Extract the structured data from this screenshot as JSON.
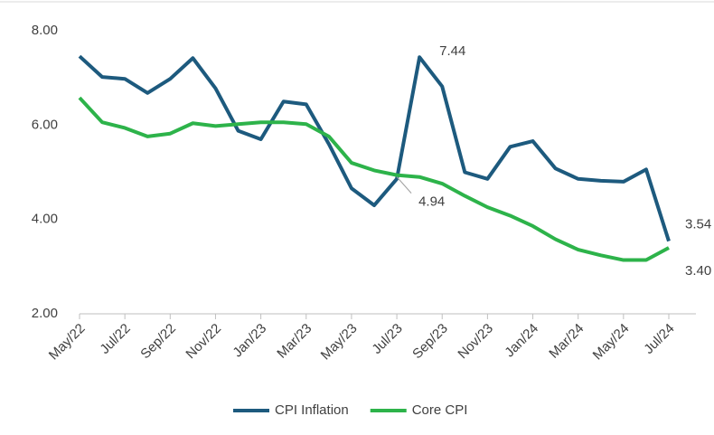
{
  "chart_data": {
    "type": "line",
    "categories": [
      "May/22",
      null,
      "Jul/22",
      null,
      "Sep/22",
      null,
      "Nov/22",
      null,
      "Jan/23",
      null,
      "Mar/23",
      null,
      "May/23",
      null,
      "Jul/23",
      null,
      "Sep/23",
      null,
      "Nov/23",
      null,
      "Jan/24",
      null,
      "Mar/24",
      null,
      "May/24",
      null,
      "Jul/24"
    ],
    "series": [
      {
        "name": "CPI Inflation",
        "color": "#1d5a7e",
        "values": [
          7.46,
          7.02,
          6.98,
          6.68,
          6.98,
          7.42,
          6.78,
          5.88,
          5.7,
          6.5,
          6.44,
          5.6,
          4.66,
          4.3,
          4.86,
          7.44,
          6.82,
          5.0,
          4.86,
          5.54,
          5.66,
          5.08,
          4.86,
          4.82,
          4.8,
          5.06,
          3.54
        ],
        "value_labels": [
          null,
          null,
          null,
          null,
          null,
          null,
          null,
          null,
          null,
          null,
          null,
          null,
          null,
          null,
          null,
          "7.44",
          null,
          null,
          null,
          null,
          null,
          null,
          null,
          null,
          null,
          null,
          "3.54"
        ]
      },
      {
        "name": "Core CPI",
        "color": "#2db34a",
        "values": [
          6.58,
          6.06,
          5.94,
          5.76,
          5.82,
          6.04,
          5.98,
          6.02,
          6.06,
          6.06,
          6.02,
          5.76,
          5.2,
          5.04,
          4.94,
          4.9,
          4.76,
          4.5,
          4.26,
          4.08,
          3.86,
          3.58,
          3.36,
          3.24,
          3.14,
          3.14,
          3.4
        ],
        "value_labels": [
          null,
          null,
          null,
          null,
          null,
          null,
          null,
          null,
          null,
          null,
          null,
          null,
          null,
          null,
          "4.94",
          null,
          null,
          null,
          null,
          null,
          null,
          null,
          null,
          null,
          null,
          null,
          "3.40"
        ]
      }
    ],
    "ylim": [
      2,
      8
    ],
    "yticks": [
      {
        "value": 2,
        "label": "2.00"
      },
      {
        "value": 4,
        "label": "4.00"
      },
      {
        "value": 6,
        "label": "6.00"
      },
      {
        "value": 8,
        "label": "8.00"
      }
    ],
    "legend": "bottom"
  }
}
